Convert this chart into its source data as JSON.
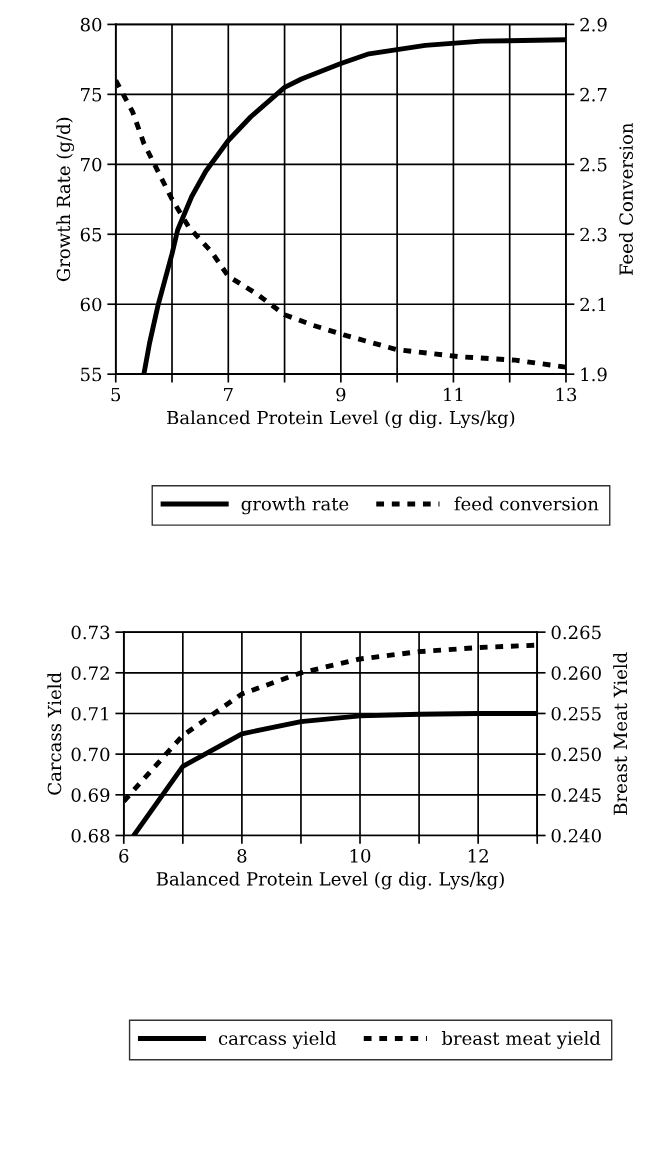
{
  "chart_data": [
    {
      "type": "line",
      "xlabel": "Balanced Protein Level (g dig. Lys/kg)",
      "ylabel": "Growth Rate (g/d)",
      "y2label": "Feed Conversion",
      "xlim": [
        5,
        13
      ],
      "xticks": [
        5,
        {
          "value": 6,
          "label": null
        },
        7,
        {
          "value": 8,
          "label": null
        },
        9,
        {
          "value": 10,
          "label": null
        },
        11,
        {
          "value": 12,
          "label": null
        },
        13
      ],
      "ylim": [
        55,
        80
      ],
      "yticks": [
        55,
        60,
        65,
        70,
        75,
        80
      ],
      "y2lim": [
        1.9,
        2.9
      ],
      "y2ticks": [
        1.9,
        2.1,
        2.3,
        2.5,
        2.7,
        2.9
      ],
      "grid": true,
      "legend": "bottom",
      "marker": "none",
      "series": [
        {
          "name": "growth rate",
          "color": "#000000",
          "line_style": "solid",
          "x": [
            5.5,
            5.6,
            5.75,
            6.0,
            6.1,
            6.35,
            6.6,
            7.0,
            7.4,
            8.0,
            8.3,
            9.0,
            9.5,
            10.5,
            11.5,
            13.0
          ],
          "values": [
            55.0,
            57.2,
            59.9,
            63.6,
            65.3,
            67.7,
            69.5,
            71.7,
            73.4,
            75.5,
            76.1,
            77.2,
            77.9,
            78.5,
            78.8,
            78.9
          ]
        },
        {
          "name": "feed conversion",
          "color": "#000000",
          "line_style": "dashed",
          "axis": "y2",
          "x": [
            5.0,
            5.3,
            5.5,
            6.0,
            6.3,
            6.7,
            7.0,
            7.5,
            8.0,
            8.5,
            9.1,
            10.0,
            11.1,
            12.1,
            13.0
          ],
          "values": [
            2.74,
            2.65,
            2.56,
            2.4,
            2.32,
            2.25,
            2.18,
            2.13,
            2.07,
            2.04,
            2.01,
            1.97,
            1.95,
            1.94,
            1.92
          ]
        }
      ]
    },
    {
      "type": "line",
      "xlabel": "Balanced Protein Level (g dig. Lys/kg)",
      "ylabel": "Carcass Yield",
      "y2label": "Breast Meat Yield",
      "xlim": [
        6,
        13
      ],
      "xticks": [
        6,
        {
          "value": 7,
          "label": null
        },
        8,
        {
          "value": 9,
          "label": null
        },
        10,
        {
          "value": 11,
          "label": null
        },
        12,
        {
          "value": 13,
          "label": null
        }
      ],
      "ylim": [
        0.68,
        0.73
      ],
      "yticks": [
        0.68,
        0.69,
        {
          "value": 0.7,
          "label": "0.70"
        },
        0.71,
        0.72,
        0.73
      ],
      "y2lim": [
        0.24,
        0.265
      ],
      "y2ticks": [
        {
          "value": 0.24,
          "label": "0.240"
        },
        0.245,
        {
          "value": 0.25,
          "label": "0.250"
        },
        0.255,
        {
          "value": 0.26,
          "label": "0.260"
        },
        0.265
      ],
      "grid": true,
      "legend": "bottom",
      "marker": "none",
      "series": [
        {
          "name": "carcass yield",
          "color": "#000000",
          "line_style": "solid",
          "x": [
            6.17,
            7,
            8,
            9,
            10,
            11,
            12,
            13
          ],
          "values": [
            0.68,
            0.697,
            0.705,
            0.708,
            0.7094,
            0.7098,
            0.71,
            0.71
          ]
        },
        {
          "name": "breast meat yield",
          "color": "#000000",
          "line_style": "dashed",
          "axis": "y2",
          "x": [
            6,
            7,
            8,
            9,
            10,
            11,
            12,
            13
          ],
          "values": [
            0.2442,
            0.2523,
            0.2574,
            0.26,
            0.2617,
            0.2626,
            0.2631,
            0.2634
          ]
        }
      ]
    }
  ]
}
